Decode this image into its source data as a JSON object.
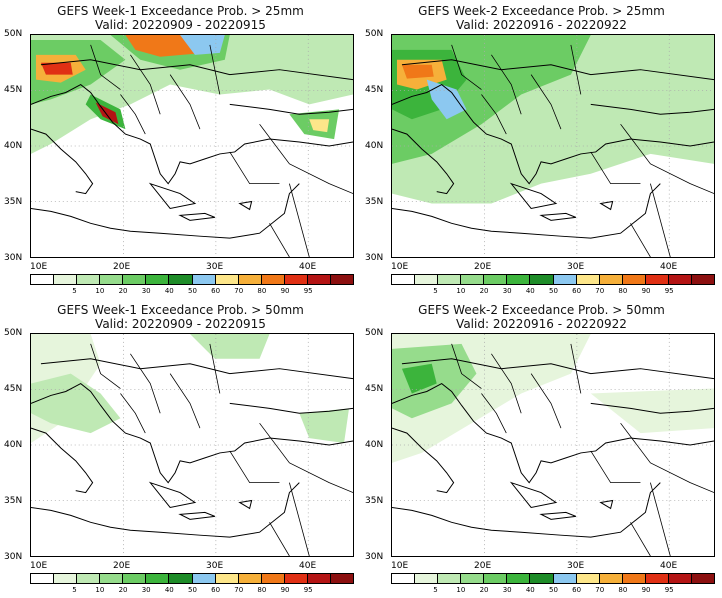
{
  "panels": [
    {
      "title": "GEFS Week-1 Exceedance Prob. > 25mm",
      "valid": "Valid: 20220909 - 20220915"
    },
    {
      "title": "GEFS Week-2 Exceedance Prob. > 25mm",
      "valid": "Valid: 20220916 - 20220922"
    },
    {
      "title": "GEFS Week-1 Exceedance Prob. > 50mm",
      "valid": "Valid: 20220909 - 20220915"
    },
    {
      "title": "GEFS Week-2 Exceedance Prob. > 50mm",
      "valid": "Valid: 20220916 - 20220922"
    }
  ],
  "lat_labels": [
    "50N",
    "45N",
    "40N",
    "35N",
    "30N"
  ],
  "lon_labels": [
    "10E",
    "20E",
    "30E",
    "40E"
  ],
  "colorbar": {
    "labels": [
      "5",
      "10",
      "20",
      "30",
      "40",
      "50",
      "60",
      "70",
      "80",
      "90",
      "95"
    ],
    "colors": [
      "#ffffff",
      "#e6f5dc",
      "#bfe9b4",
      "#96dc8c",
      "#6ccc64",
      "#3cb43c",
      "#1e8c28",
      "#8cc8f0",
      "#fde68a",
      "#f6b03a",
      "#f07818",
      "#e03014",
      "#b41414",
      "#8c1010"
    ]
  }
}
